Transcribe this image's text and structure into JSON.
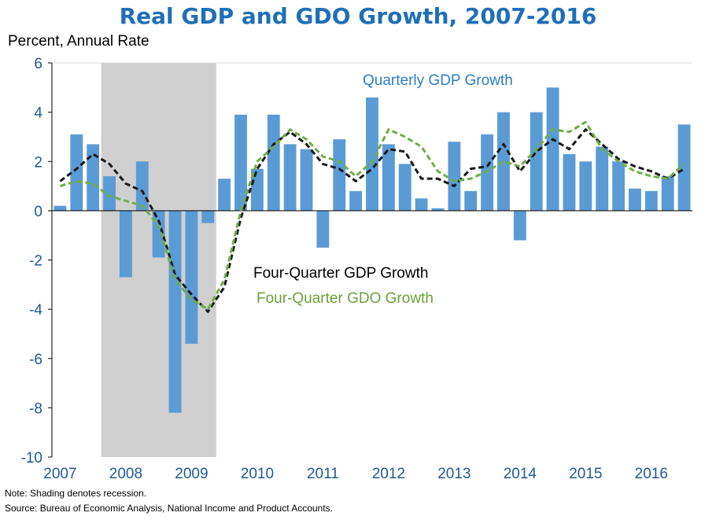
{
  "chart_data": {
    "type": "bar",
    "title": "Real GDP and GDO Growth, 2007-2016",
    "ylabel": "Percent, Annual Rate",
    "ylim": [
      -10,
      6
    ],
    "yticks": [
      6,
      4,
      2,
      0,
      -2,
      -4,
      -6,
      -8,
      -10
    ],
    "years": [
      "2007",
      "2008",
      "2009",
      "2010",
      "2011",
      "2012",
      "2013",
      "2014",
      "2015",
      "2016"
    ],
    "recession": {
      "start_quarter": 3,
      "end_quarter": 9
    },
    "series": [
      {
        "name": "Quarterly GDP Growth",
        "type": "bar",
        "color": "#5b9bd5",
        "values": [
          0.2,
          3.1,
          2.7,
          1.4,
          -2.7,
          2.0,
          -1.9,
          -8.2,
          -5.4,
          -0.5,
          1.3,
          3.9,
          1.7,
          3.9,
          2.7,
          2.5,
          -1.5,
          2.9,
          0.8,
          4.6,
          2.7,
          1.9,
          0.5,
          0.1,
          2.8,
          0.8,
          3.1,
          4.0,
          -1.2,
          4.0,
          5.0,
          2.3,
          2.0,
          2.6,
          2.0,
          0.9,
          0.8,
          1.4,
          3.5
        ]
      },
      {
        "name": "Four-Quarter GDP Growth",
        "type": "line",
        "color": "#1a1a1a",
        "values": [
          1.2,
          1.7,
          2.3,
          1.9,
          1.1,
          0.8,
          -0.4,
          -2.6,
          -3.4,
          -4.1,
          -3.1,
          -0.3,
          1.7,
          2.7,
          3.2,
          2.7,
          1.9,
          1.7,
          1.2,
          1.7,
          2.5,
          2.4,
          1.3,
          1.3,
          1.0,
          1.7,
          1.8,
          2.7,
          1.6,
          2.4,
          2.9,
          2.5,
          3.3,
          2.7,
          2.1,
          1.8,
          1.6,
          1.3,
          1.7
        ]
      },
      {
        "name": "Four-Quarter GDO Growth",
        "type": "line",
        "color": "#70ad47",
        "values": [
          1.0,
          1.2,
          1.1,
          0.6,
          0.4,
          0.2,
          -0.6,
          -2.8,
          -3.6,
          -4.0,
          -2.8,
          0.0,
          2.0,
          2.6,
          3.3,
          2.9,
          2.2,
          2.0,
          1.4,
          2.0,
          3.3,
          3.0,
          2.6,
          1.6,
          1.2,
          1.3,
          1.6,
          2.0,
          1.8,
          2.5,
          3.3,
          3.2,
          3.6,
          2.5,
          2.0,
          1.6,
          1.4,
          1.3,
          1.9
        ]
      }
    ],
    "annotations": {
      "quarterly": "Quarterly GDP Growth",
      "four_quarter_gdp": "Four-Quarter GDP Growth",
      "four_quarter_gdo": "Four-Quarter GDO Growth"
    }
  },
  "notes": {
    "note": "Note: Shading denotes recession.",
    "source": "Source: Bureau of Economic Analysis, National Income and Product Accounts."
  }
}
